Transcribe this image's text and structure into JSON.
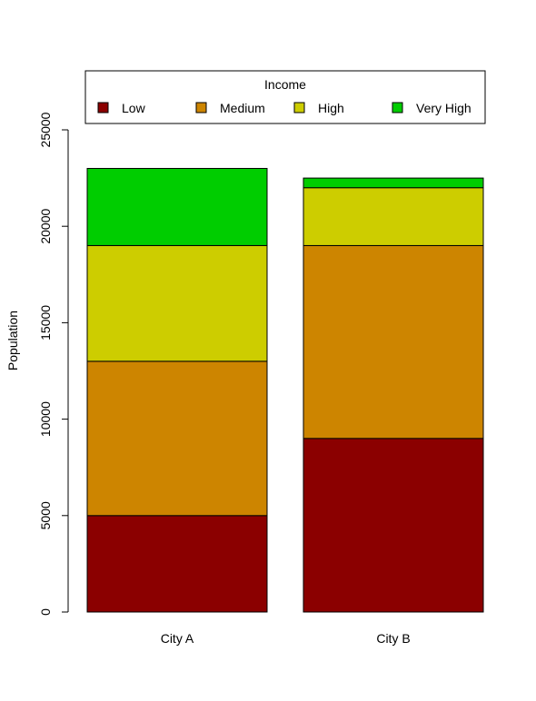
{
  "chart_data": {
    "type": "bar",
    "stacked": true,
    "title": "",
    "xlabel": "",
    "ylabel": "Population",
    "ylim": [
      0,
      25000
    ],
    "yticks": [
      0,
      5000,
      10000,
      15000,
      20000,
      25000
    ],
    "categories": [
      "City A",
      "City B"
    ],
    "legend": {
      "title": "Income",
      "placement": "top"
    },
    "series": [
      {
        "name": "Low",
        "color": "#8b0000",
        "values": [
          5000,
          9000
        ]
      },
      {
        "name": "Medium",
        "color": "#cd8500",
        "values": [
          8000,
          10000
        ]
      },
      {
        "name": "High",
        "color": "#cdcd00",
        "values": [
          6000,
          3000
        ]
      },
      {
        "name": "Very High",
        "color": "#00cd00",
        "values": [
          4000,
          500
        ]
      }
    ]
  }
}
